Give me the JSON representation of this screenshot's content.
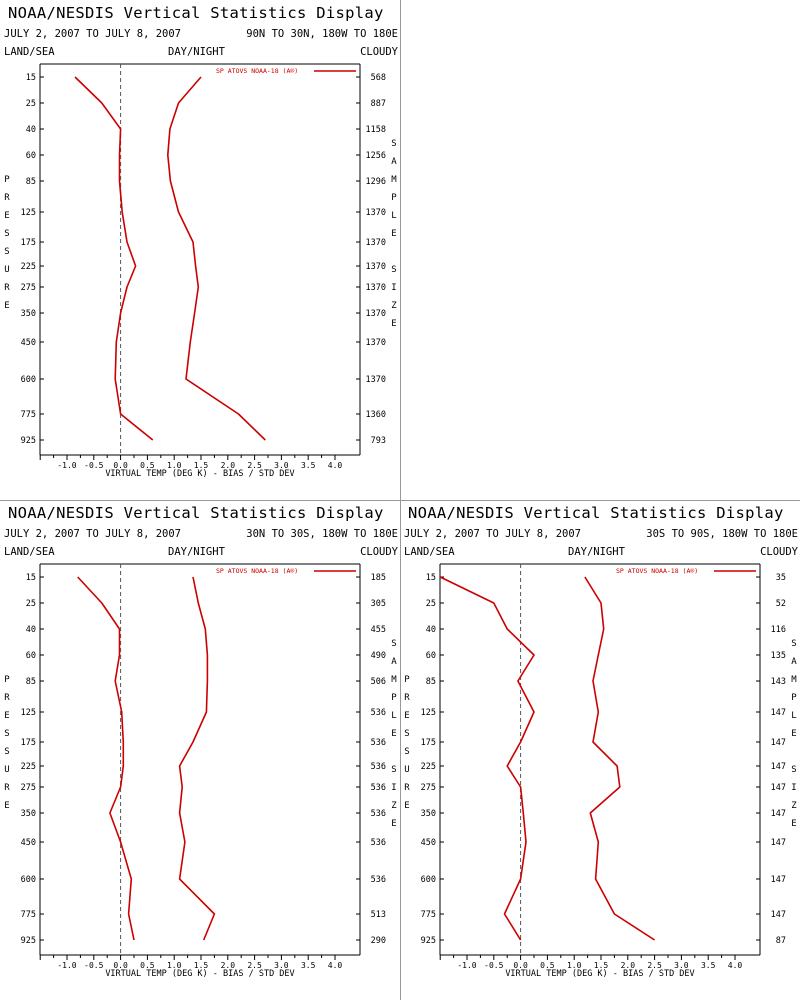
{
  "common": {
    "title": "NOAA/NESDIS Vertical Statistics Display",
    "dates": "JULY 2, 2007 TO JULY 8, 2007",
    "land_sea": "LAND/SEA",
    "day_night": "DAY/NIGHT",
    "cloudy": "CLOUDY",
    "legend": "SP ATOVS NOAA-18 (A®)",
    "xlabel": "VIRTUAL TEMP (DEG K) - BIAS / STD DEV",
    "left_vertical_label": "PRESSURE",
    "right_vertical_label": "SAMPLE SIZE",
    "colors": {
      "series": "#cc0000",
      "axis": "#000000",
      "zero_line": "#555555"
    }
  },
  "chart_data": [
    {
      "type": "line",
      "region": "90N TO 30N, 180W TO 180E",
      "xlabel": "VIRTUAL TEMP (DEG K) - BIAS / STD DEV",
      "ylabel": "PRESSURE",
      "xlim": [
        -1.5,
        4.0
      ],
      "xticks": [
        "-1.0",
        "-0.5",
        "0.0",
        "0.5",
        "1.0",
        "1.5",
        "2.0",
        "2.5",
        "3.0",
        "3.5",
        "4.0"
      ],
      "y_categories": [
        "15",
        "25",
        "40",
        "60",
        "85",
        "125",
        "175",
        "225",
        "275",
        "350",
        "450",
        "600",
        "775",
        "925"
      ],
      "sample_size": [
        "568",
        "887",
        "1158",
        "1256",
        "1296",
        "1370",
        "1370",
        "1370",
        "1370",
        "1370",
        "1370",
        "1370",
        "1360",
        "793"
      ],
      "series": [
        {
          "name": "bias",
          "values": [
            -0.85,
            -0.35,
            0.0,
            -0.02,
            -0.02,
            0.03,
            0.12,
            0.28,
            0.12,
            0.0,
            -0.08,
            -0.1,
            0.0,
            0.6
          ]
        },
        {
          "name": "std dev",
          "values": [
            1.5,
            1.08,
            0.92,
            0.88,
            0.93,
            1.08,
            1.35,
            1.4,
            1.45,
            1.38,
            1.3,
            1.22,
            2.2,
            2.7
          ]
        }
      ]
    },
    {
      "type": "line",
      "region": "30N TO 30S, 180W TO 180E",
      "xlabel": "VIRTUAL TEMP (DEG K) - BIAS / STD DEV",
      "ylabel": "PRESSURE",
      "xlim": [
        -1.5,
        4.0
      ],
      "xticks": [
        "-1.0",
        "-0.5",
        "0.0",
        "0.5",
        "1.0",
        "1.5",
        "2.0",
        "2.5",
        "3.0",
        "3.5",
        "4.0"
      ],
      "y_categories": [
        "15",
        "25",
        "40",
        "60",
        "85",
        "125",
        "175",
        "225",
        "275",
        "350",
        "450",
        "600",
        "775",
        "925"
      ],
      "sample_size": [
        "185",
        "305",
        "455",
        "490",
        "506",
        "536",
        "536",
        "536",
        "536",
        "536",
        "536",
        "536",
        "513",
        "290"
      ],
      "series": [
        {
          "name": "bias",
          "values": [
            -0.8,
            -0.35,
            -0.02,
            -0.02,
            -0.1,
            0.02,
            0.05,
            0.05,
            0.0,
            -0.2,
            0.0,
            0.2,
            0.15,
            0.25
          ]
        },
        {
          "name": "std dev",
          "values": [
            1.35,
            1.45,
            1.58,
            1.62,
            1.62,
            1.6,
            1.35,
            1.1,
            1.15,
            1.1,
            1.2,
            1.1,
            1.75,
            1.55
          ]
        }
      ]
    },
    {
      "type": "line",
      "region": "30S TO 90S, 180W TO 180E",
      "xlabel": "VIRTUAL TEMP (DEG K) - BIAS / STD DEV",
      "ylabel": "PRESSURE",
      "xlim": [
        -1.5,
        4.0
      ],
      "xticks": [
        "-1.0",
        "-0.5",
        "0.0",
        "0.5",
        "1.0",
        "1.5",
        "2.0",
        "2.5",
        "3.0",
        "3.5",
        "4.0"
      ],
      "y_categories": [
        "15",
        "25",
        "40",
        "60",
        "85",
        "125",
        "175",
        "225",
        "275",
        "350",
        "450",
        "600",
        "775",
        "925"
      ],
      "sample_size": [
        "35",
        "52",
        "116",
        "135",
        "143",
        "147",
        "147",
        "147",
        "147",
        "147",
        "147",
        "147",
        "147",
        "87"
      ],
      "series": [
        {
          "name": "bias",
          "values": [
            -1.5,
            -0.5,
            -0.25,
            0.25,
            -0.05,
            0.25,
            0.0,
            -0.25,
            0.0,
            0.05,
            0.1,
            0.0,
            -0.3,
            0.0
          ]
        },
        {
          "name": "std dev",
          "values": [
            1.2,
            1.5,
            1.55,
            1.45,
            1.35,
            1.45,
            1.35,
            1.8,
            1.85,
            1.3,
            1.45,
            1.4,
            1.75,
            2.5
          ]
        }
      ]
    }
  ]
}
